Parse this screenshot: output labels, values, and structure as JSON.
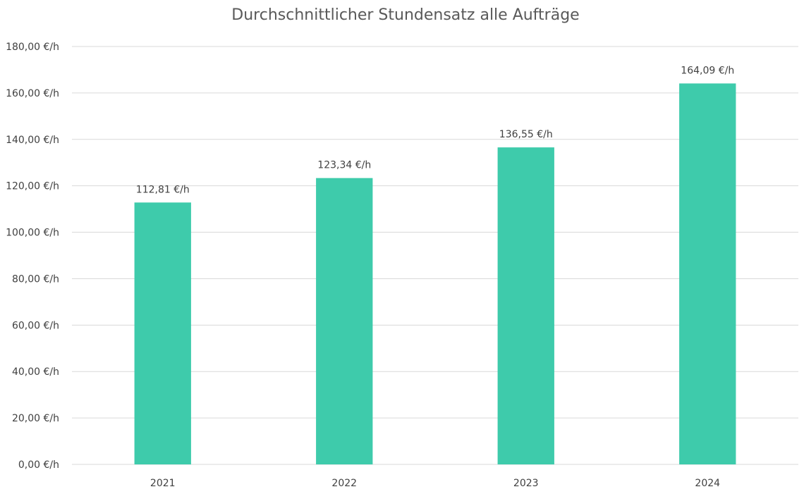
{
  "chart_data": {
    "type": "bar",
    "title": "Durchschnittlicher Stundensatz alle Aufträge",
    "xlabel": "",
    "ylabel": "",
    "categories": [
      "2021",
      "2022",
      "2023",
      "2024"
    ],
    "values": [
      112.81,
      123.34,
      136.55,
      164.09
    ],
    "data_labels": [
      "112,81 €/h",
      "123,34 €/h",
      "136,55 €/h",
      "164,09 €/h"
    ],
    "ylim": [
      0,
      180
    ],
    "y_ticks": [
      0,
      20,
      40,
      60,
      80,
      100,
      120,
      140,
      160,
      180
    ],
    "y_tick_labels": [
      "0,00 €/h",
      "20,00 €/h",
      "40,00 €/h",
      "60,00 €/h",
      "80,00 €/h",
      "100,00 €/h",
      "120,00 €/h",
      "140,00 €/h",
      "160,00 €/h",
      "180,00 €/h"
    ],
    "grid": true,
    "legend": "none",
    "bar_color": "#3ECBAB"
  }
}
